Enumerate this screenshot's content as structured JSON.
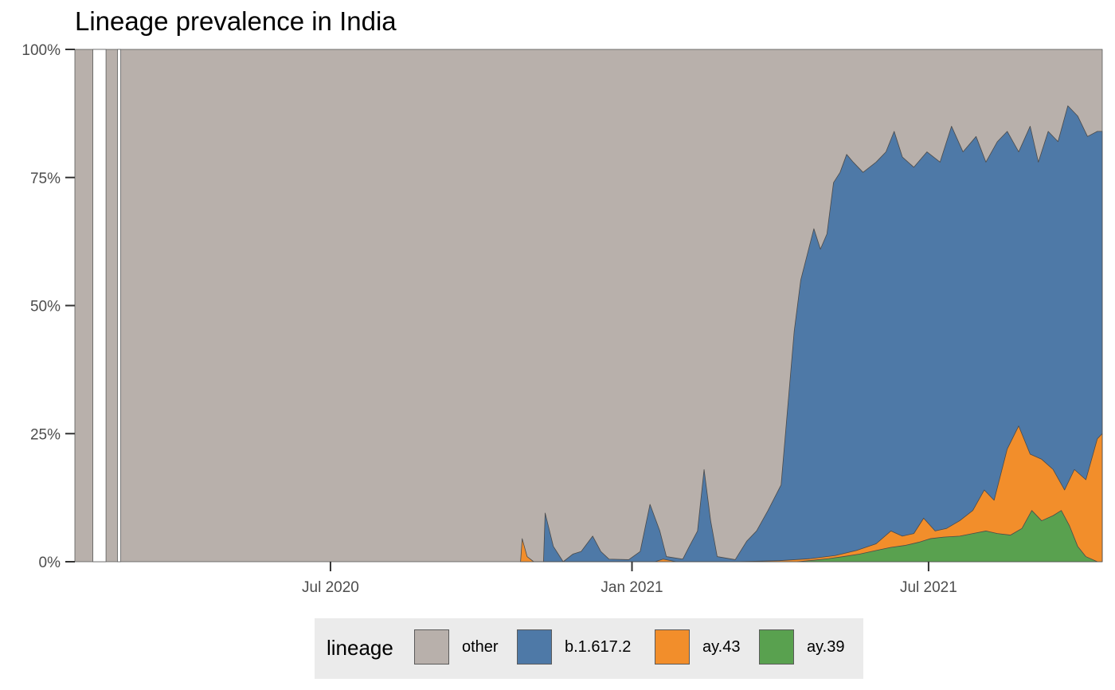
{
  "chart_data": {
    "type": "area",
    "title": "Lineage prevalence in India",
    "xlabel": "",
    "ylabel": "",
    "x_range": [
      "2020-01-27",
      "2021-10-15"
    ],
    "ylim": [
      0,
      1
    ],
    "y_ticks": [
      0,
      0.25,
      0.5,
      0.75,
      1
    ],
    "y_tick_labels": [
      "0%",
      "25%",
      "50%",
      "75%",
      "100%"
    ],
    "x_ticks": [
      "2020-07-01",
      "2021-01-01",
      "2021-07-01"
    ],
    "x_tick_labels": [
      "Jul 2020",
      "Jan 2021",
      "Jul 2021"
    ],
    "grid": false,
    "legend_position": "bottom",
    "legend_title": "lineage",
    "stacking_order": [
      "ay.39",
      "ay.43",
      "b.1.617.2",
      "other"
    ],
    "series": [
      {
        "name": "other",
        "color": "#b8b0ab"
      },
      {
        "name": "b.1.617.2",
        "color": "#4e79a7"
      },
      {
        "name": "ay.43",
        "color": "#f28e2b"
      },
      {
        "name": "ay.39",
        "color": "#59a14f"
      }
    ],
    "no_data_gaps": [
      [
        "2020-02-07",
        "2020-02-15"
      ],
      [
        "2020-02-22",
        "2020-02-24"
      ]
    ],
    "cumulative_boundaries": {
      "ay.39": [
        [
          "2021-04-12",
          0
        ],
        [
          "2021-04-22",
          0.003
        ],
        [
          "2021-05-01",
          0.006
        ],
        [
          "2021-05-10",
          0.01
        ],
        [
          "2021-05-20",
          0.015
        ],
        [
          "2021-05-30",
          0.022
        ],
        [
          "2021-06-08",
          0.028
        ],
        [
          "2021-06-17",
          0.032
        ],
        [
          "2021-06-25",
          0.038
        ],
        [
          "2021-07-02",
          0.045
        ],
        [
          "2021-07-10",
          0.048
        ],
        [
          "2021-07-20",
          0.05
        ],
        [
          "2021-07-28",
          0.055
        ],
        [
          "2021-08-05",
          0.06
        ],
        [
          "2021-08-12",
          0.055
        ],
        [
          "2021-08-20",
          0.052
        ],
        [
          "2021-08-27",
          0.065
        ],
        [
          "2021-09-02",
          0.1
        ],
        [
          "2021-09-08",
          0.08
        ],
        [
          "2021-09-15",
          0.09
        ],
        [
          "2021-09-20",
          0.1
        ],
        [
          "2021-09-25",
          0.07
        ],
        [
          "2021-09-30",
          0.03
        ],
        [
          "2021-10-05",
          0.01
        ],
        [
          "2021-10-12",
          0
        ]
      ],
      "ay.43": [
        [
          "2020-10-25",
          0
        ],
        [
          "2020-10-26",
          0.045
        ],
        [
          "2020-10-29",
          0.01
        ],
        [
          "2020-11-02",
          0
        ],
        [
          "2021-01-15",
          0
        ],
        [
          "2021-01-20",
          0.005
        ],
        [
          "2021-01-28",
          0
        ],
        [
          "2021-03-05",
          0
        ],
        [
          "2021-04-01",
          0.002
        ],
        [
          "2021-04-20",
          0.006
        ],
        [
          "2021-05-05",
          0.012
        ],
        [
          "2021-05-18",
          0.022
        ],
        [
          "2021-05-30",
          0.035
        ],
        [
          "2021-06-08",
          0.06
        ],
        [
          "2021-06-15",
          0.05
        ],
        [
          "2021-06-22",
          0.055
        ],
        [
          "2021-06-28",
          0.085
        ],
        [
          "2021-07-05",
          0.06
        ],
        [
          "2021-07-12",
          0.065
        ],
        [
          "2021-07-20",
          0.08
        ],
        [
          "2021-07-28",
          0.1
        ],
        [
          "2021-08-04",
          0.14
        ],
        [
          "2021-08-10",
          0.12
        ],
        [
          "2021-08-18",
          0.22
        ],
        [
          "2021-08-25",
          0.265
        ],
        [
          "2021-09-01",
          0.21
        ],
        [
          "2021-09-08",
          0.2
        ],
        [
          "2021-09-15",
          0.18
        ],
        [
          "2021-09-22",
          0.14
        ],
        [
          "2021-09-28",
          0.18
        ],
        [
          "2021-10-05",
          0.16
        ],
        [
          "2021-10-12",
          0.24
        ],
        [
          "2021-10-15",
          0.25
        ]
      ],
      "b.1.617.2": [
        [
          "2020-11-08",
          0
        ],
        [
          "2020-11-09",
          0.095
        ],
        [
          "2020-11-14",
          0.03
        ],
        [
          "2020-11-20",
          0
        ],
        [
          "2020-11-26",
          0.015
        ],
        [
          "2020-12-01",
          0.02
        ],
        [
          "2020-12-08",
          0.05
        ],
        [
          "2020-12-13",
          0.02
        ],
        [
          "2020-12-18",
          0.005
        ],
        [
          "2020-12-30",
          0.004
        ],
        [
          "2021-01-06",
          0.02
        ],
        [
          "2021-01-12",
          0.112
        ],
        [
          "2021-01-18",
          0.06
        ],
        [
          "2021-01-22",
          0.01
        ],
        [
          "2021-02-01",
          0.005
        ],
        [
          "2021-02-05",
          0.03
        ],
        [
          "2021-02-10",
          0.06
        ],
        [
          "2021-02-14",
          0.18
        ],
        [
          "2021-02-18",
          0.08
        ],
        [
          "2021-02-22",
          0.01
        ],
        [
          "2021-03-05",
          0.004
        ],
        [
          "2021-03-12",
          0.04
        ],
        [
          "2021-03-18",
          0.06
        ],
        [
          "2021-03-25",
          0.1
        ],
        [
          "2021-04-02",
          0.15
        ],
        [
          "2021-04-06",
          0.3
        ],
        [
          "2021-04-10",
          0.45
        ],
        [
          "2021-04-14",
          0.55
        ],
        [
          "2021-04-18",
          0.6
        ],
        [
          "2021-04-22",
          0.65
        ],
        [
          "2021-04-26",
          0.61
        ],
        [
          "2021-04-30",
          0.64
        ],
        [
          "2021-05-04",
          0.74
        ],
        [
          "2021-05-08",
          0.76
        ],
        [
          "2021-05-12",
          0.795
        ],
        [
          "2021-05-16",
          0.78
        ],
        [
          "2021-05-22",
          0.76
        ],
        [
          "2021-05-30",
          0.78
        ],
        [
          "2021-06-05",
          0.8
        ],
        [
          "2021-06-10",
          0.84
        ],
        [
          "2021-06-15",
          0.79
        ],
        [
          "2021-06-22",
          0.77
        ],
        [
          "2021-06-30",
          0.8
        ],
        [
          "2021-07-08",
          0.78
        ],
        [
          "2021-07-15",
          0.85
        ],
        [
          "2021-07-22",
          0.8
        ],
        [
          "2021-07-30",
          0.83
        ],
        [
          "2021-08-05",
          0.78
        ],
        [
          "2021-08-12",
          0.82
        ],
        [
          "2021-08-18",
          0.84
        ],
        [
          "2021-08-25",
          0.8
        ],
        [
          "2021-09-01",
          0.85
        ],
        [
          "2021-09-06",
          0.78
        ],
        [
          "2021-09-12",
          0.84
        ],
        [
          "2021-09-18",
          0.82
        ],
        [
          "2021-09-24",
          0.89
        ],
        [
          "2021-09-30",
          0.87
        ],
        [
          "2021-10-06",
          0.83
        ],
        [
          "2021-10-12",
          0.84
        ],
        [
          "2021-10-15",
          0.84
        ]
      ]
    }
  }
}
